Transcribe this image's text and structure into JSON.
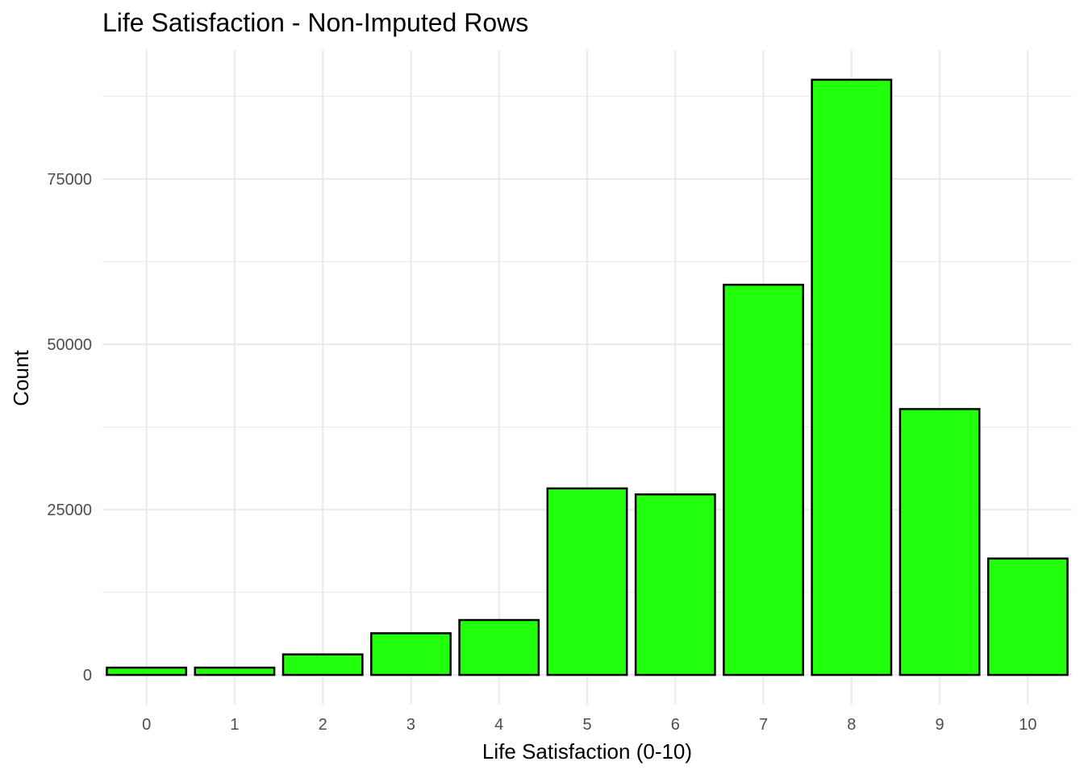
{
  "chart_data": {
    "type": "bar",
    "title": "Life Satisfaction - Non-Imputed Rows",
    "xlabel": "Life Satisfaction (0-10)",
    "ylabel": "Count",
    "categories": [
      "0",
      "1",
      "2",
      "3",
      "4",
      "5",
      "6",
      "7",
      "8",
      "9",
      "10"
    ],
    "values": [
      1100,
      1100,
      3100,
      6300,
      8300,
      28200,
      27300,
      59000,
      90000,
      40200,
      17600
    ],
    "y_ticks": [
      0,
      25000,
      50000,
      75000
    ],
    "y_tick_labels": [
      "0",
      "25000",
      "50000",
      "75000"
    ],
    "ylim": [
      -4500,
      94500
    ],
    "bar_color": "#22ff0c",
    "bar_outline": "#000000",
    "grid": true,
    "legend": "none"
  }
}
